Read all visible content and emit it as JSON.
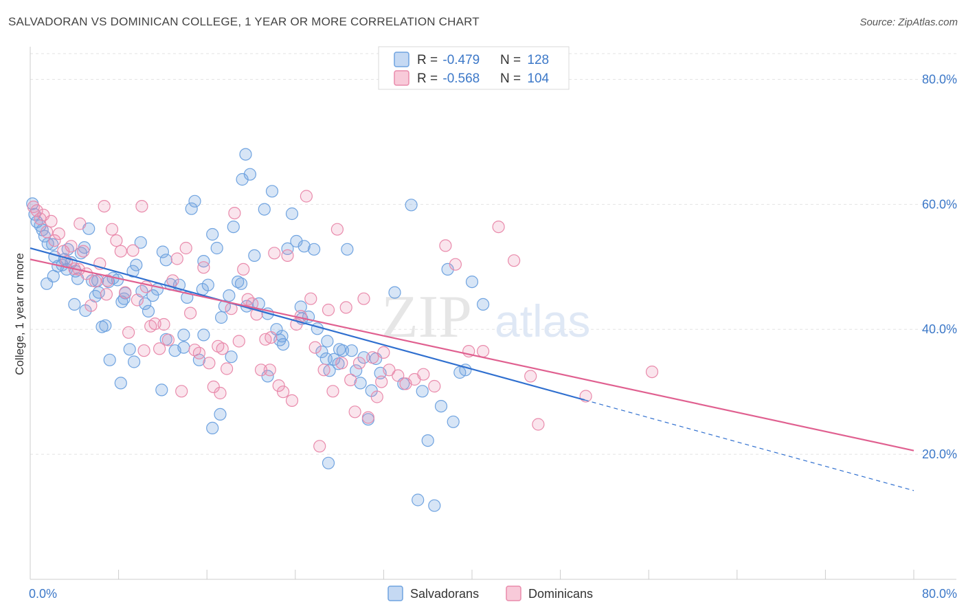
{
  "title": "SALVADORAN VS DOMINICAN COLLEGE, 1 YEAR OR MORE CORRELATION CHART",
  "source": "Source: ZipAtlas.com",
  "watermark": {
    "zip": "ZIP",
    "atlas": "atlas"
  },
  "legend": {
    "rows": [
      {
        "r_label": "R = ",
        "r_value": "-0.479",
        "n_label": "N = ",
        "n_value": "128",
        "color": "#6fa3e0"
      },
      {
        "r_label": "R = ",
        "r_value": "-0.568",
        "n_label": "N = ",
        "n_value": "104",
        "color": "#e98aab"
      }
    ]
  },
  "chart_data": {
    "type": "scatter",
    "title": "SALVADORAN VS DOMINICAN COLLEGE, 1 YEAR OR MORE CORRELATION CHART",
    "xlabel": "",
    "ylabel": "College, 1 year or more",
    "xlim": [
      0,
      80
    ],
    "ylim": [
      0,
      85
    ],
    "x_tick_labels": [
      "0.0%",
      "80.0%"
    ],
    "y_ticks": [
      20,
      40,
      60,
      80
    ],
    "y_tick_labels": [
      "20.0%",
      "40.0%",
      "60.0%",
      "80.0%"
    ],
    "grid": true,
    "legend_position": "top-center",
    "series": [
      {
        "name": "Salvadorans",
        "color": "#6fa3e0",
        "r": -0.479,
        "n": 128,
        "trend": {
          "x0": 0,
          "y0": 53.0,
          "x1": 50.2,
          "y1": 28.7,
          "dashed_to_x": 80,
          "dashed_to_y": 14.2
        },
        "points": [
          [
            0.2,
            60.1
          ],
          [
            0.4,
            58.4
          ],
          [
            0.6,
            57.2
          ],
          [
            0.9,
            56.6
          ],
          [
            1.1,
            55.9
          ],
          [
            1.3,
            54.9
          ],
          [
            1.6,
            53.7
          ],
          [
            2.0,
            53.6
          ],
          [
            2.2,
            51.6
          ],
          [
            2.5,
            50.1
          ],
          [
            2.9,
            50.3
          ],
          [
            3.1,
            51.2
          ],
          [
            3.4,
            52.8
          ],
          [
            3.7,
            50.7
          ],
          [
            4.1,
            49.3
          ],
          [
            4.3,
            48.1
          ],
          [
            4.6,
            52.2
          ],
          [
            4.9,
            53.1
          ],
          [
            5.3,
            56.1
          ],
          [
            5.6,
            47.8
          ],
          [
            5.9,
            45.3
          ],
          [
            6.2,
            45.9
          ],
          [
            6.5,
            40.4
          ],
          [
            6.8,
            40.6
          ],
          [
            7.1,
            47.6
          ],
          [
            7.5,
            48.2
          ],
          [
            7.9,
            47.9
          ],
          [
            8.3,
            44.4
          ],
          [
            8.6,
            45.8
          ],
          [
            9.0,
            36.8
          ],
          [
            9.3,
            49.3
          ],
          [
            9.6,
            50.3
          ],
          [
            10.0,
            53.9
          ],
          [
            10.4,
            44.1
          ],
          [
            10.7,
            42.9
          ],
          [
            11.1,
            45.4
          ],
          [
            11.5,
            46.4
          ],
          [
            12.0,
            52.4
          ],
          [
            12.3,
            51.1
          ],
          [
            12.7,
            47.2
          ],
          [
            13.1,
            36.6
          ],
          [
            13.5,
            47.1
          ],
          [
            13.9,
            37.1
          ],
          [
            14.2,
            45.1
          ],
          [
            14.6,
            59.3
          ],
          [
            14.9,
            60.5
          ],
          [
            15.3,
            35.1
          ],
          [
            15.7,
            50.9
          ],
          [
            16.1,
            47.1
          ],
          [
            16.5,
            55.2
          ],
          [
            16.9,
            53.0
          ],
          [
            17.3,
            41.9
          ],
          [
            17.6,
            43.7
          ],
          [
            18.0,
            45.4
          ],
          [
            18.4,
            56.4
          ],
          [
            18.8,
            47.6
          ],
          [
            19.2,
            64.0
          ],
          [
            19.5,
            68.0
          ],
          [
            19.9,
            64.8
          ],
          [
            20.3,
            51.8
          ],
          [
            20.7,
            44.1
          ],
          [
            21.2,
            59.2
          ],
          [
            21.5,
            42.5
          ],
          [
            21.9,
            62.1
          ],
          [
            22.3,
            40.0
          ],
          [
            22.6,
            38.3
          ],
          [
            22.9,
            37.6
          ],
          [
            23.3,
            52.9
          ],
          [
            23.7,
            58.5
          ],
          [
            24.1,
            54.1
          ],
          [
            24.5,
            43.6
          ],
          [
            24.8,
            53.3
          ],
          [
            25.2,
            42.0
          ],
          [
            25.7,
            52.8
          ],
          [
            26.0,
            40.1
          ],
          [
            26.4,
            36.4
          ],
          [
            26.8,
            35.3
          ],
          [
            27.1,
            33.4
          ],
          [
            27.5,
            35.2
          ],
          [
            27.9,
            34.5
          ],
          [
            28.3,
            36.6
          ],
          [
            28.7,
            52.8
          ],
          [
            29.1,
            36.6
          ],
          [
            29.5,
            33.4
          ],
          [
            29.9,
            31.4
          ],
          [
            30.2,
            35.5
          ],
          [
            30.6,
            25.6
          ],
          [
            30.9,
            30.2
          ],
          [
            31.3,
            35.3
          ],
          [
            31.7,
            33.0
          ],
          [
            33.0,
            45.9
          ],
          [
            33.8,
            31.3
          ],
          [
            34.5,
            59.9
          ],
          [
            35.1,
            12.7
          ],
          [
            35.5,
            30.1
          ],
          [
            36.0,
            22.2
          ],
          [
            36.6,
            11.8
          ],
          [
            37.2,
            27.7
          ],
          [
            37.8,
            49.6
          ],
          [
            38.3,
            25.2
          ],
          [
            38.9,
            33.1
          ],
          [
            39.4,
            33.5
          ],
          [
            40.0,
            47.6
          ],
          [
            41.0,
            44.0
          ],
          [
            13.9,
            39.1
          ],
          [
            10.1,
            46.1
          ],
          [
            7.2,
            35.1
          ],
          [
            8.2,
            31.4
          ],
          [
            11.9,
            30.3
          ],
          [
            15.7,
            39.1
          ],
          [
            17.2,
            26.4
          ],
          [
            16.5,
            24.2
          ],
          [
            19.6,
            43.7
          ],
          [
            21.5,
            32.5
          ],
          [
            19.1,
            47.3
          ],
          [
            24.6,
            41.7
          ],
          [
            12.3,
            38.4
          ],
          [
            6.1,
            47.8
          ],
          [
            4.0,
            44.0
          ],
          [
            2.1,
            48.5
          ],
          [
            1.5,
            47.3
          ],
          [
            5.0,
            43.0
          ],
          [
            9.4,
            34.8
          ],
          [
            27.0,
            18.6
          ],
          [
            22.8,
            38.9
          ],
          [
            28.0,
            36.8
          ],
          [
            26.9,
            38.1
          ],
          [
            18.2,
            35.6
          ],
          [
            15.6,
            46.4
          ],
          [
            8.5,
            44.9
          ],
          [
            3.3,
            49.6
          ]
        ]
      },
      {
        "name": "Dominicans",
        "color": "#e98aab",
        "r": -0.568,
        "n": 104,
        "trend": {
          "x0": 0,
          "y0": 51.2,
          "x1": 80,
          "y1": 20.6
        },
        "points": [
          [
            0.3,
            59.6
          ],
          [
            0.6,
            59.0
          ],
          [
            0.9,
            57.7
          ],
          [
            1.2,
            58.3
          ],
          [
            1.5,
            55.6
          ],
          [
            1.9,
            57.3
          ],
          [
            2.2,
            54.2
          ],
          [
            2.6,
            55.3
          ],
          [
            3.0,
            52.5
          ],
          [
            3.3,
            50.8
          ],
          [
            3.7,
            53.3
          ],
          [
            4.0,
            49.7
          ],
          [
            4.4,
            49.6
          ],
          [
            4.8,
            52.5
          ],
          [
            5.1,
            48.9
          ],
          [
            5.5,
            43.8
          ],
          [
            5.9,
            47.7
          ],
          [
            6.3,
            50.5
          ],
          [
            6.7,
            59.7
          ],
          [
            7.0,
            47.8
          ],
          [
            7.4,
            56.0
          ],
          [
            7.8,
            54.2
          ],
          [
            8.2,
            52.5
          ],
          [
            8.6,
            45.9
          ],
          [
            8.9,
            39.5
          ],
          [
            9.3,
            52.6
          ],
          [
            9.7,
            44.7
          ],
          [
            10.1,
            59.7
          ],
          [
            10.5,
            46.8
          ],
          [
            10.9,
            40.5
          ],
          [
            11.3,
            40.9
          ],
          [
            11.7,
            36.9
          ],
          [
            12.1,
            40.8
          ],
          [
            12.5,
            38.3
          ],
          [
            12.9,
            47.8
          ],
          [
            13.3,
            51.3
          ],
          [
            13.7,
            30.1
          ],
          [
            14.1,
            53.0
          ],
          [
            14.5,
            42.6
          ],
          [
            14.9,
            36.7
          ],
          [
            15.3,
            36.2
          ],
          [
            15.7,
            49.9
          ],
          [
            16.2,
            34.6
          ],
          [
            16.6,
            30.8
          ],
          [
            17.0,
            37.3
          ],
          [
            17.4,
            36.9
          ],
          [
            17.8,
            33.7
          ],
          [
            18.2,
            43.3
          ],
          [
            18.5,
            58.6
          ],
          [
            18.9,
            38.1
          ],
          [
            19.3,
            49.6
          ],
          [
            19.7,
            44.8
          ],
          [
            20.1,
            44.1
          ],
          [
            20.5,
            42.4
          ],
          [
            20.9,
            33.5
          ],
          [
            21.3,
            38.4
          ],
          [
            21.7,
            33.5
          ],
          [
            22.1,
            52.2
          ],
          [
            22.5,
            31.0
          ],
          [
            22.9,
            30.0
          ],
          [
            23.3,
            51.8
          ],
          [
            23.7,
            28.6
          ],
          [
            24.1,
            40.8
          ],
          [
            24.5,
            42.1
          ],
          [
            25.0,
            61.3
          ],
          [
            25.4,
            44.9
          ],
          [
            25.8,
            37.1
          ],
          [
            26.2,
            21.3
          ],
          [
            26.6,
            33.5
          ],
          [
            27.0,
            43.1
          ],
          [
            27.4,
            30.1
          ],
          [
            27.8,
            56.0
          ],
          [
            28.2,
            34.6
          ],
          [
            28.6,
            43.5
          ],
          [
            29.0,
            31.9
          ],
          [
            29.4,
            26.8
          ],
          [
            29.8,
            34.6
          ],
          [
            30.2,
            44.9
          ],
          [
            30.6,
            25.9
          ],
          [
            31.0,
            35.5
          ],
          [
            31.4,
            29.2
          ],
          [
            32.0,
            36.3
          ],
          [
            32.5,
            33.5
          ],
          [
            33.3,
            32.6
          ],
          [
            34.0,
            31.3
          ],
          [
            34.8,
            32.0
          ],
          [
            35.6,
            32.8
          ],
          [
            36.6,
            30.9
          ],
          [
            37.6,
            53.4
          ],
          [
            38.5,
            50.4
          ],
          [
            39.7,
            36.5
          ],
          [
            41.0,
            36.5
          ],
          [
            42.4,
            56.4
          ],
          [
            43.8,
            51.0
          ],
          [
            45.3,
            32.5
          ],
          [
            46.0,
            24.8
          ],
          [
            50.3,
            29.3
          ],
          [
            56.3,
            33.2
          ],
          [
            31.8,
            31.6
          ],
          [
            21.8,
            38.7
          ],
          [
            17.2,
            29.8
          ],
          [
            10.3,
            36.6
          ],
          [
            6.9,
            45.6
          ],
          [
            4.5,
            56.9
          ]
        ]
      }
    ]
  },
  "bottom_legend": [
    {
      "label": "Salvadorans",
      "color": "#6fa3e0"
    },
    {
      "label": "Dominicans",
      "color": "#e98aab"
    }
  ]
}
